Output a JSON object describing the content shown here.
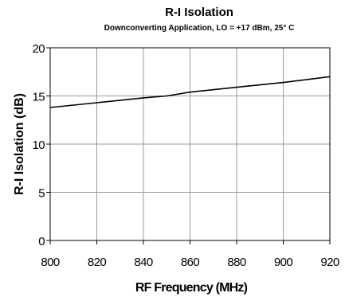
{
  "chart_data": {
    "type": "line",
    "title": "R-I Isolation",
    "subtitle": "Downconverting Application, LO = +17 dBm, 25° C",
    "xlabel": "RF Frequency (MHz)",
    "ylabel": "R-I Isolation (dB)",
    "xlim": [
      800,
      920
    ],
    "ylim": [
      0,
      20
    ],
    "x_ticks": [
      "800",
      "820",
      "840",
      "860",
      "880",
      "900",
      "920"
    ],
    "y_ticks": [
      "0",
      "5",
      "10",
      "15",
      "20"
    ],
    "grid": true,
    "series": [
      {
        "x": [
          800,
          820,
          840,
          850,
          860,
          880,
          900,
          920
        ],
        "y": [
          13.8,
          14.3,
          14.8,
          15.0,
          15.4,
          15.9,
          16.4,
          17.0
        ],
        "color": "#000000"
      }
    ]
  }
}
